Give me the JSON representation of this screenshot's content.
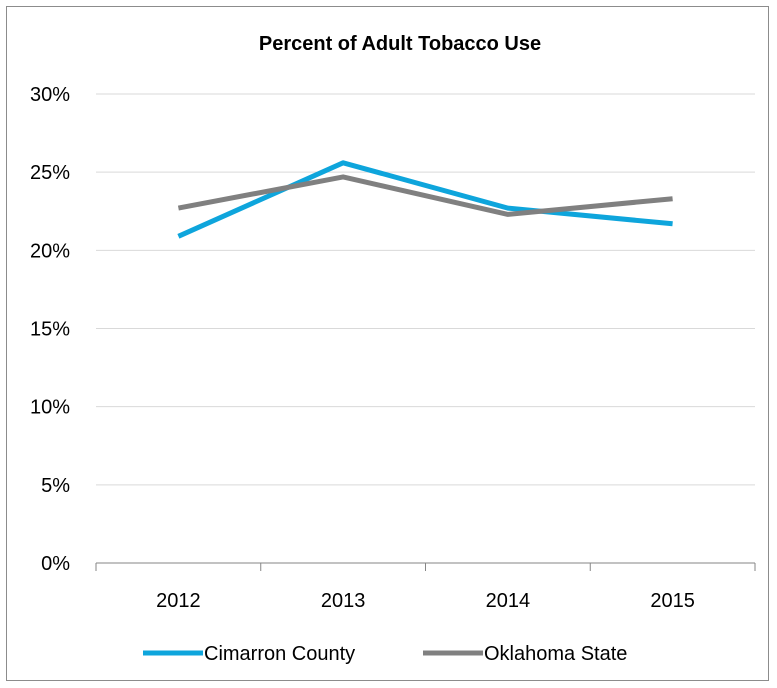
{
  "chart_data": {
    "type": "line",
    "title": "Percent of Adult Tobacco Use",
    "xlabel": "",
    "ylabel": "",
    "categories": [
      "2012",
      "2013",
      "2014",
      "2015"
    ],
    "ylim": [
      0,
      30
    ],
    "yticks": [
      0,
      5,
      10,
      15,
      20,
      25,
      30
    ],
    "ytick_labels": [
      "0%",
      "5%",
      "10%",
      "15%",
      "20%",
      "25%",
      "30%"
    ],
    "grid": true,
    "legend_position": "bottom",
    "series": [
      {
        "name": "Cimarron County",
        "values": [
          20.9,
          25.6,
          22.7,
          21.7
        ],
        "color": "#0ea5dc"
      },
      {
        "name": "Oklahoma State",
        "values": [
          22.7,
          24.7,
          22.3,
          23.3
        ],
        "color": "#808080"
      }
    ]
  }
}
